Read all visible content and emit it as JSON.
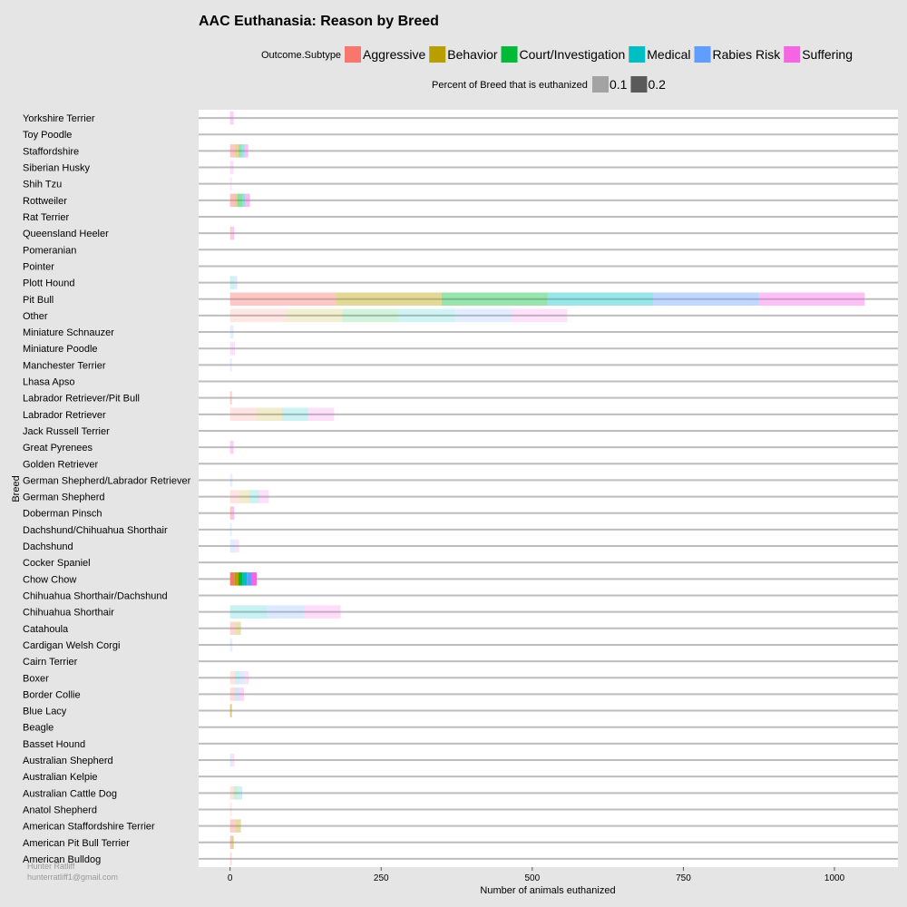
{
  "chart_data": {
    "type": "bar",
    "orientation": "horizontal",
    "stacked": true,
    "title": "AAC Euthanasia: Reason by Breed",
    "xlabel": "Number of animals euthanized",
    "ylabel": "Breed",
    "xlim": [
      -52,
      1105
    ],
    "xticks": [
      0,
      250,
      500,
      750,
      1000
    ],
    "fill_legend": {
      "title": "Outcome.Subtype",
      "items": [
        {
          "name": "Aggressive",
          "color": "#f8766d"
        },
        {
          "name": "Behavior",
          "color": "#b79f00"
        },
        {
          "name": "Court/Investigation",
          "color": "#00ba38"
        },
        {
          "name": "Medical",
          "color": "#00bfc4"
        },
        {
          "name": "Rabies Risk",
          "color": "#619cff"
        },
        {
          "name": "Suffering",
          "color": "#f564e3"
        }
      ]
    },
    "alpha_legend": {
      "title": "Percent of Breed that is euthanized",
      "items": [
        {
          "label": "0.1",
          "color": "#a3a3a3"
        },
        {
          "label": "0.2",
          "color": "#5a5a5a"
        }
      ]
    },
    "bars": [
      {
        "breed": "Yorkshire Terrier",
        "alpha": 0.3,
        "values": [
          0,
          0,
          0,
          0,
          0,
          6
        ]
      },
      {
        "breed": "Toy Poodle",
        "alpha": 0.15,
        "values": [
          0,
          0,
          0,
          0,
          0,
          0
        ]
      },
      {
        "breed": "Staffordshire",
        "alpha": 0.4,
        "values": [
          8,
          6,
          5,
          5,
          0,
          6
        ]
      },
      {
        "breed": "Siberian Husky",
        "alpha": 0.2,
        "values": [
          0,
          0,
          0,
          0,
          0,
          6
        ]
      },
      {
        "breed": "Shih Tzu",
        "alpha": 0.15,
        "values": [
          0,
          0,
          0,
          0,
          0,
          3
        ]
      },
      {
        "breed": "Rottweiler",
        "alpha": 0.45,
        "values": [
          8,
          4,
          8,
          5,
          0,
          8
        ]
      },
      {
        "breed": "Rat Terrier",
        "alpha": 0.15,
        "values": [
          0,
          0,
          0,
          0,
          0,
          0
        ]
      },
      {
        "breed": "Queensland Heeler",
        "alpha": 0.35,
        "values": [
          3,
          0,
          0,
          0,
          0,
          4
        ]
      },
      {
        "breed": "Pomeranian",
        "alpha": 0.15,
        "values": [
          0,
          0,
          0,
          0,
          0,
          0
        ]
      },
      {
        "breed": "Pointer",
        "alpha": 0.15,
        "values": [
          0,
          0,
          0,
          0,
          0,
          0
        ]
      },
      {
        "breed": "Plott Hound",
        "alpha": 0.2,
        "values": [
          0,
          0,
          0,
          6,
          6,
          0
        ]
      },
      {
        "breed": "Pit Bull",
        "alpha": 0.4,
        "values": [
          175,
          175,
          175,
          175,
          175,
          175
        ]
      },
      {
        "breed": "Other",
        "alpha": 0.18,
        "values": [
          93,
          93,
          93,
          93,
          93,
          93
        ]
      },
      {
        "breed": "Miniature Schnauzer",
        "alpha": 0.15,
        "values": [
          0,
          0,
          0,
          0,
          6,
          0
        ]
      },
      {
        "breed": "Miniature Poodle",
        "alpha": 0.2,
        "values": [
          0,
          0,
          0,
          0,
          0,
          8
        ]
      },
      {
        "breed": "Manchester Terrier",
        "alpha": 0.15,
        "values": [
          0,
          0,
          0,
          0,
          3,
          0
        ]
      },
      {
        "breed": "Lhasa Apso",
        "alpha": 0.15,
        "values": [
          0,
          0,
          0,
          0,
          0,
          0
        ]
      },
      {
        "breed": "Labrador Retriever/Pit Bull",
        "alpha": 0.35,
        "values": [
          3,
          0,
          0,
          0,
          0,
          0
        ]
      },
      {
        "breed": "Labrador Retriever",
        "alpha": 0.2,
        "values": [
          43,
          43,
          0,
          43,
          0,
          43
        ]
      },
      {
        "breed": "Jack Russell Terrier",
        "alpha": 0.15,
        "values": [
          0,
          0,
          0,
          0,
          0,
          0
        ]
      },
      {
        "breed": "Great Pyrenees",
        "alpha": 0.3,
        "values": [
          0,
          0,
          0,
          0,
          0,
          6
        ]
      },
      {
        "breed": "Golden Retriever",
        "alpha": 0.15,
        "values": [
          0,
          0,
          0,
          0,
          0,
          0
        ]
      },
      {
        "breed": "German Shepherd/Labrador Retriever",
        "alpha": 0.15,
        "values": [
          0,
          0,
          0,
          0,
          4,
          0
        ]
      },
      {
        "breed": "German Shepherd",
        "alpha": 0.2,
        "values": [
          16,
          16,
          0,
          16,
          0,
          16
        ]
      },
      {
        "breed": "Doberman Pinsch",
        "alpha": 0.4,
        "values": [
          3,
          0,
          0,
          0,
          0,
          4
        ]
      },
      {
        "breed": "Dachshund/Chihuahua Shorthair",
        "alpha": 0.15,
        "values": [
          0,
          0,
          0,
          0,
          3,
          0
        ]
      },
      {
        "breed": "Dachshund",
        "alpha": 0.18,
        "values": [
          0,
          0,
          0,
          0,
          8,
          7
        ]
      },
      {
        "breed": "Cocker Spaniel",
        "alpha": 0.15,
        "values": [
          0,
          0,
          0,
          0,
          0,
          0
        ]
      },
      {
        "breed": "Chow Chow",
        "alpha": 1.0,
        "values": [
          7,
          7,
          7,
          7,
          7,
          9
        ]
      },
      {
        "breed": "Chihuahua Shorthair/Dachshund",
        "alpha": 0.15,
        "values": [
          0,
          0,
          0,
          0,
          0,
          0
        ]
      },
      {
        "breed": "Chihuahua Shorthair",
        "alpha": 0.22,
        "values": [
          0,
          0,
          0,
          61,
          61,
          61
        ]
      },
      {
        "breed": "Catahoula",
        "alpha": 0.3,
        "values": [
          9,
          9,
          0,
          0,
          0,
          0
        ]
      },
      {
        "breed": "Cardigan Welsh Corgi",
        "alpha": 0.15,
        "values": [
          0,
          0,
          0,
          0,
          4,
          0
        ]
      },
      {
        "breed": "Cairn Terrier",
        "alpha": 0.15,
        "values": [
          0,
          0,
          0,
          0,
          0,
          0
        ]
      },
      {
        "breed": "Boxer",
        "alpha": 0.2,
        "values": [
          8,
          0,
          0,
          8,
          7,
          8
        ]
      },
      {
        "breed": "Border Collie",
        "alpha": 0.25,
        "values": [
          8,
          0,
          0,
          0,
          7,
          8
        ]
      },
      {
        "breed": "Blue Lacy",
        "alpha": 0.5,
        "values": [
          0,
          3,
          0,
          0,
          0,
          0
        ]
      },
      {
        "breed": "Beagle",
        "alpha": 0.15,
        "values": [
          0,
          0,
          0,
          0,
          0,
          0
        ]
      },
      {
        "breed": "Basset Hound",
        "alpha": 0.15,
        "values": [
          0,
          0,
          0,
          0,
          0,
          0
        ]
      },
      {
        "breed": "Australian Shepherd",
        "alpha": 0.2,
        "values": [
          0,
          0,
          0,
          0,
          3,
          4
        ]
      },
      {
        "breed": "Australian Kelpie",
        "alpha": 0.15,
        "values": [
          0,
          0,
          0,
          0,
          0,
          0
        ]
      },
      {
        "breed": "Australian Cattle Dog",
        "alpha": 0.2,
        "values": [
          6,
          0,
          7,
          7,
          0,
          0
        ]
      },
      {
        "breed": "Anatol Shepherd",
        "alpha": 0.15,
        "values": [
          3,
          0,
          0,
          0,
          0,
          0
        ]
      },
      {
        "breed": "American Staffordshire Terrier",
        "alpha": 0.35,
        "values": [
          9,
          9,
          0,
          0,
          0,
          0
        ]
      },
      {
        "breed": "American Pit Bull Terrier",
        "alpha": 0.45,
        "values": [
          3,
          3,
          0,
          0,
          0,
          0
        ]
      },
      {
        "breed": "American Bulldog",
        "alpha": 0.25,
        "values": [
          3,
          0,
          0,
          0,
          0,
          0
        ]
      }
    ]
  },
  "credit": {
    "name": "Hunter Ratliff",
    "email": "hunterratliff1@gmail.com"
  }
}
